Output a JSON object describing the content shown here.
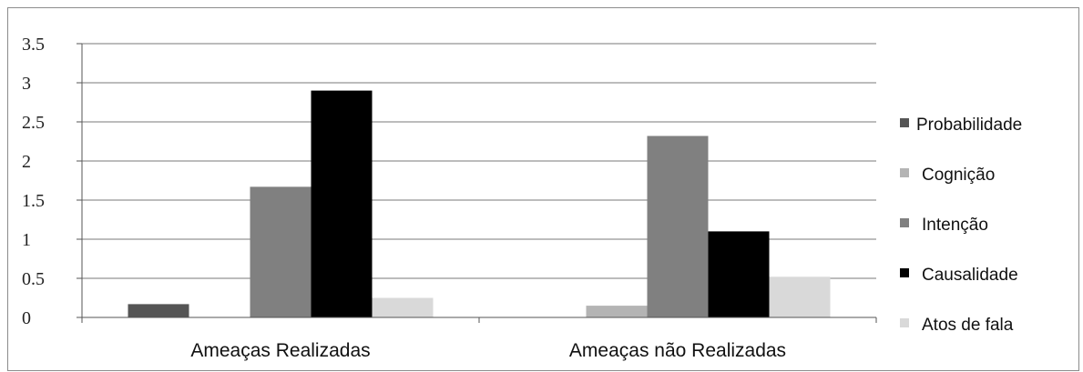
{
  "chart_data": {
    "type": "bar",
    "categories": [
      "Ameaças Realizadas",
      "Ameaças não Realizadas"
    ],
    "series": [
      {
        "name": "Probabilidade",
        "color": "#555555",
        "values": [
          0.17,
          0.0
        ]
      },
      {
        "name": "Cognição",
        "color": "#b4b4b4",
        "values": [
          0.0,
          0.15
        ]
      },
      {
        "name": "Intenção",
        "color": "#808080",
        "values": [
          1.67,
          2.32
        ]
      },
      {
        "name": "Causalidade",
        "color": "#000000",
        "values": [
          2.9,
          1.1
        ]
      },
      {
        "name": "Atos de fala",
        "color": "#d9d9d9",
        "values": [
          0.25,
          0.52
        ]
      }
    ],
    "ylim": [
      0,
      3.5
    ],
    "yticks": [
      0,
      0.5,
      1,
      1.5,
      2,
      2.5,
      3,
      3.5
    ],
    "ytick_labels": [
      "0",
      "0.5",
      "1",
      "1.5",
      "2",
      "2.5",
      "3",
      "3.5"
    ],
    "grid": true,
    "legend_position": "right"
  }
}
